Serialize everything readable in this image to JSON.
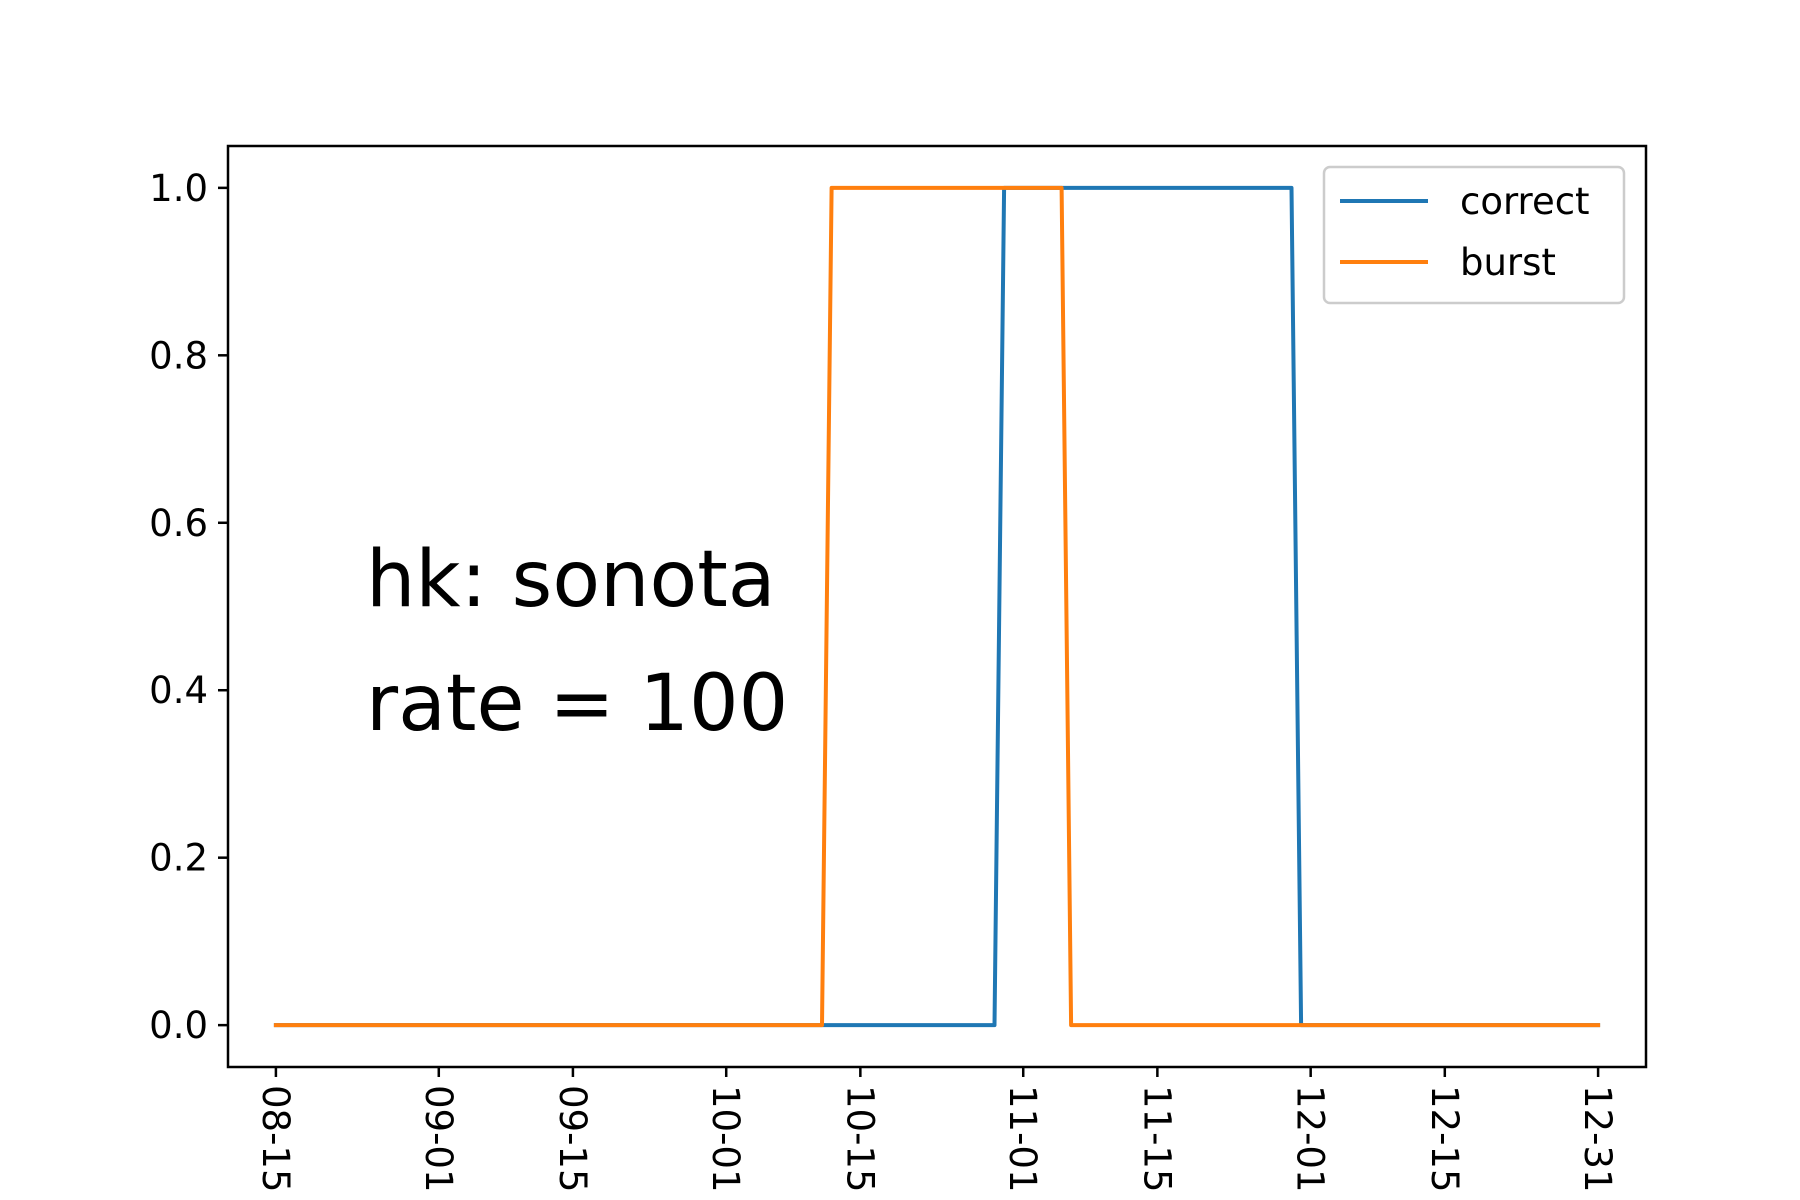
{
  "chart_data": {
    "type": "line",
    "x_type": "date",
    "year": 2018,
    "xlim": [
      "2018-08-10",
      "2019-01-05"
    ],
    "ylim": [
      -0.05,
      1.05
    ],
    "x_ticks": [
      "2018-08-15",
      "2018-09-01",
      "2018-09-15",
      "2018-10-01",
      "2018-10-15",
      "2018-11-01",
      "2018-11-15",
      "2018-12-01",
      "2018-12-15",
      "2018-12-31"
    ],
    "x_tick_labels": [
      "08-15",
      "09-01",
      "09-15",
      "10-01",
      "10-15",
      "11-01",
      "11-15",
      "12-01",
      "12-15",
      "12-31"
    ],
    "y_ticks": [
      0.0,
      0.2,
      0.4,
      0.6,
      0.8,
      1.0
    ],
    "y_tick_labels": [
      "0.0",
      "0.2",
      "0.4",
      "0.6",
      "0.8",
      "1.0"
    ],
    "grid": false,
    "legend_position": "upper right",
    "series": [
      {
        "name": "correct",
        "color": "#1f77b4",
        "points": [
          {
            "x": "2018-08-15",
            "y": 0
          },
          {
            "x": "2018-10-11",
            "y": 0
          },
          {
            "x": "2018-10-12",
            "y": 0
          },
          {
            "x": "2018-10-29",
            "y": 0
          },
          {
            "x": "2018-10-30",
            "y": 1
          },
          {
            "x": "2018-11-29",
            "y": 1
          },
          {
            "x": "2018-11-30",
            "y": 0
          },
          {
            "x": "2018-12-31",
            "y": 0
          }
        ]
      },
      {
        "name": "burst",
        "color": "#ff7f0e",
        "points": [
          {
            "x": "2018-08-15",
            "y": 0
          },
          {
            "x": "2018-10-11",
            "y": 0
          },
          {
            "x": "2018-10-12",
            "y": 1
          },
          {
            "x": "2018-11-05",
            "y": 1
          },
          {
            "x": "2018-11-06",
            "y": 0
          },
          {
            "x": "2018-12-31",
            "y": 0
          }
        ]
      }
    ],
    "annotations": [
      "hk: sonota",
      "rate = 100"
    ]
  }
}
